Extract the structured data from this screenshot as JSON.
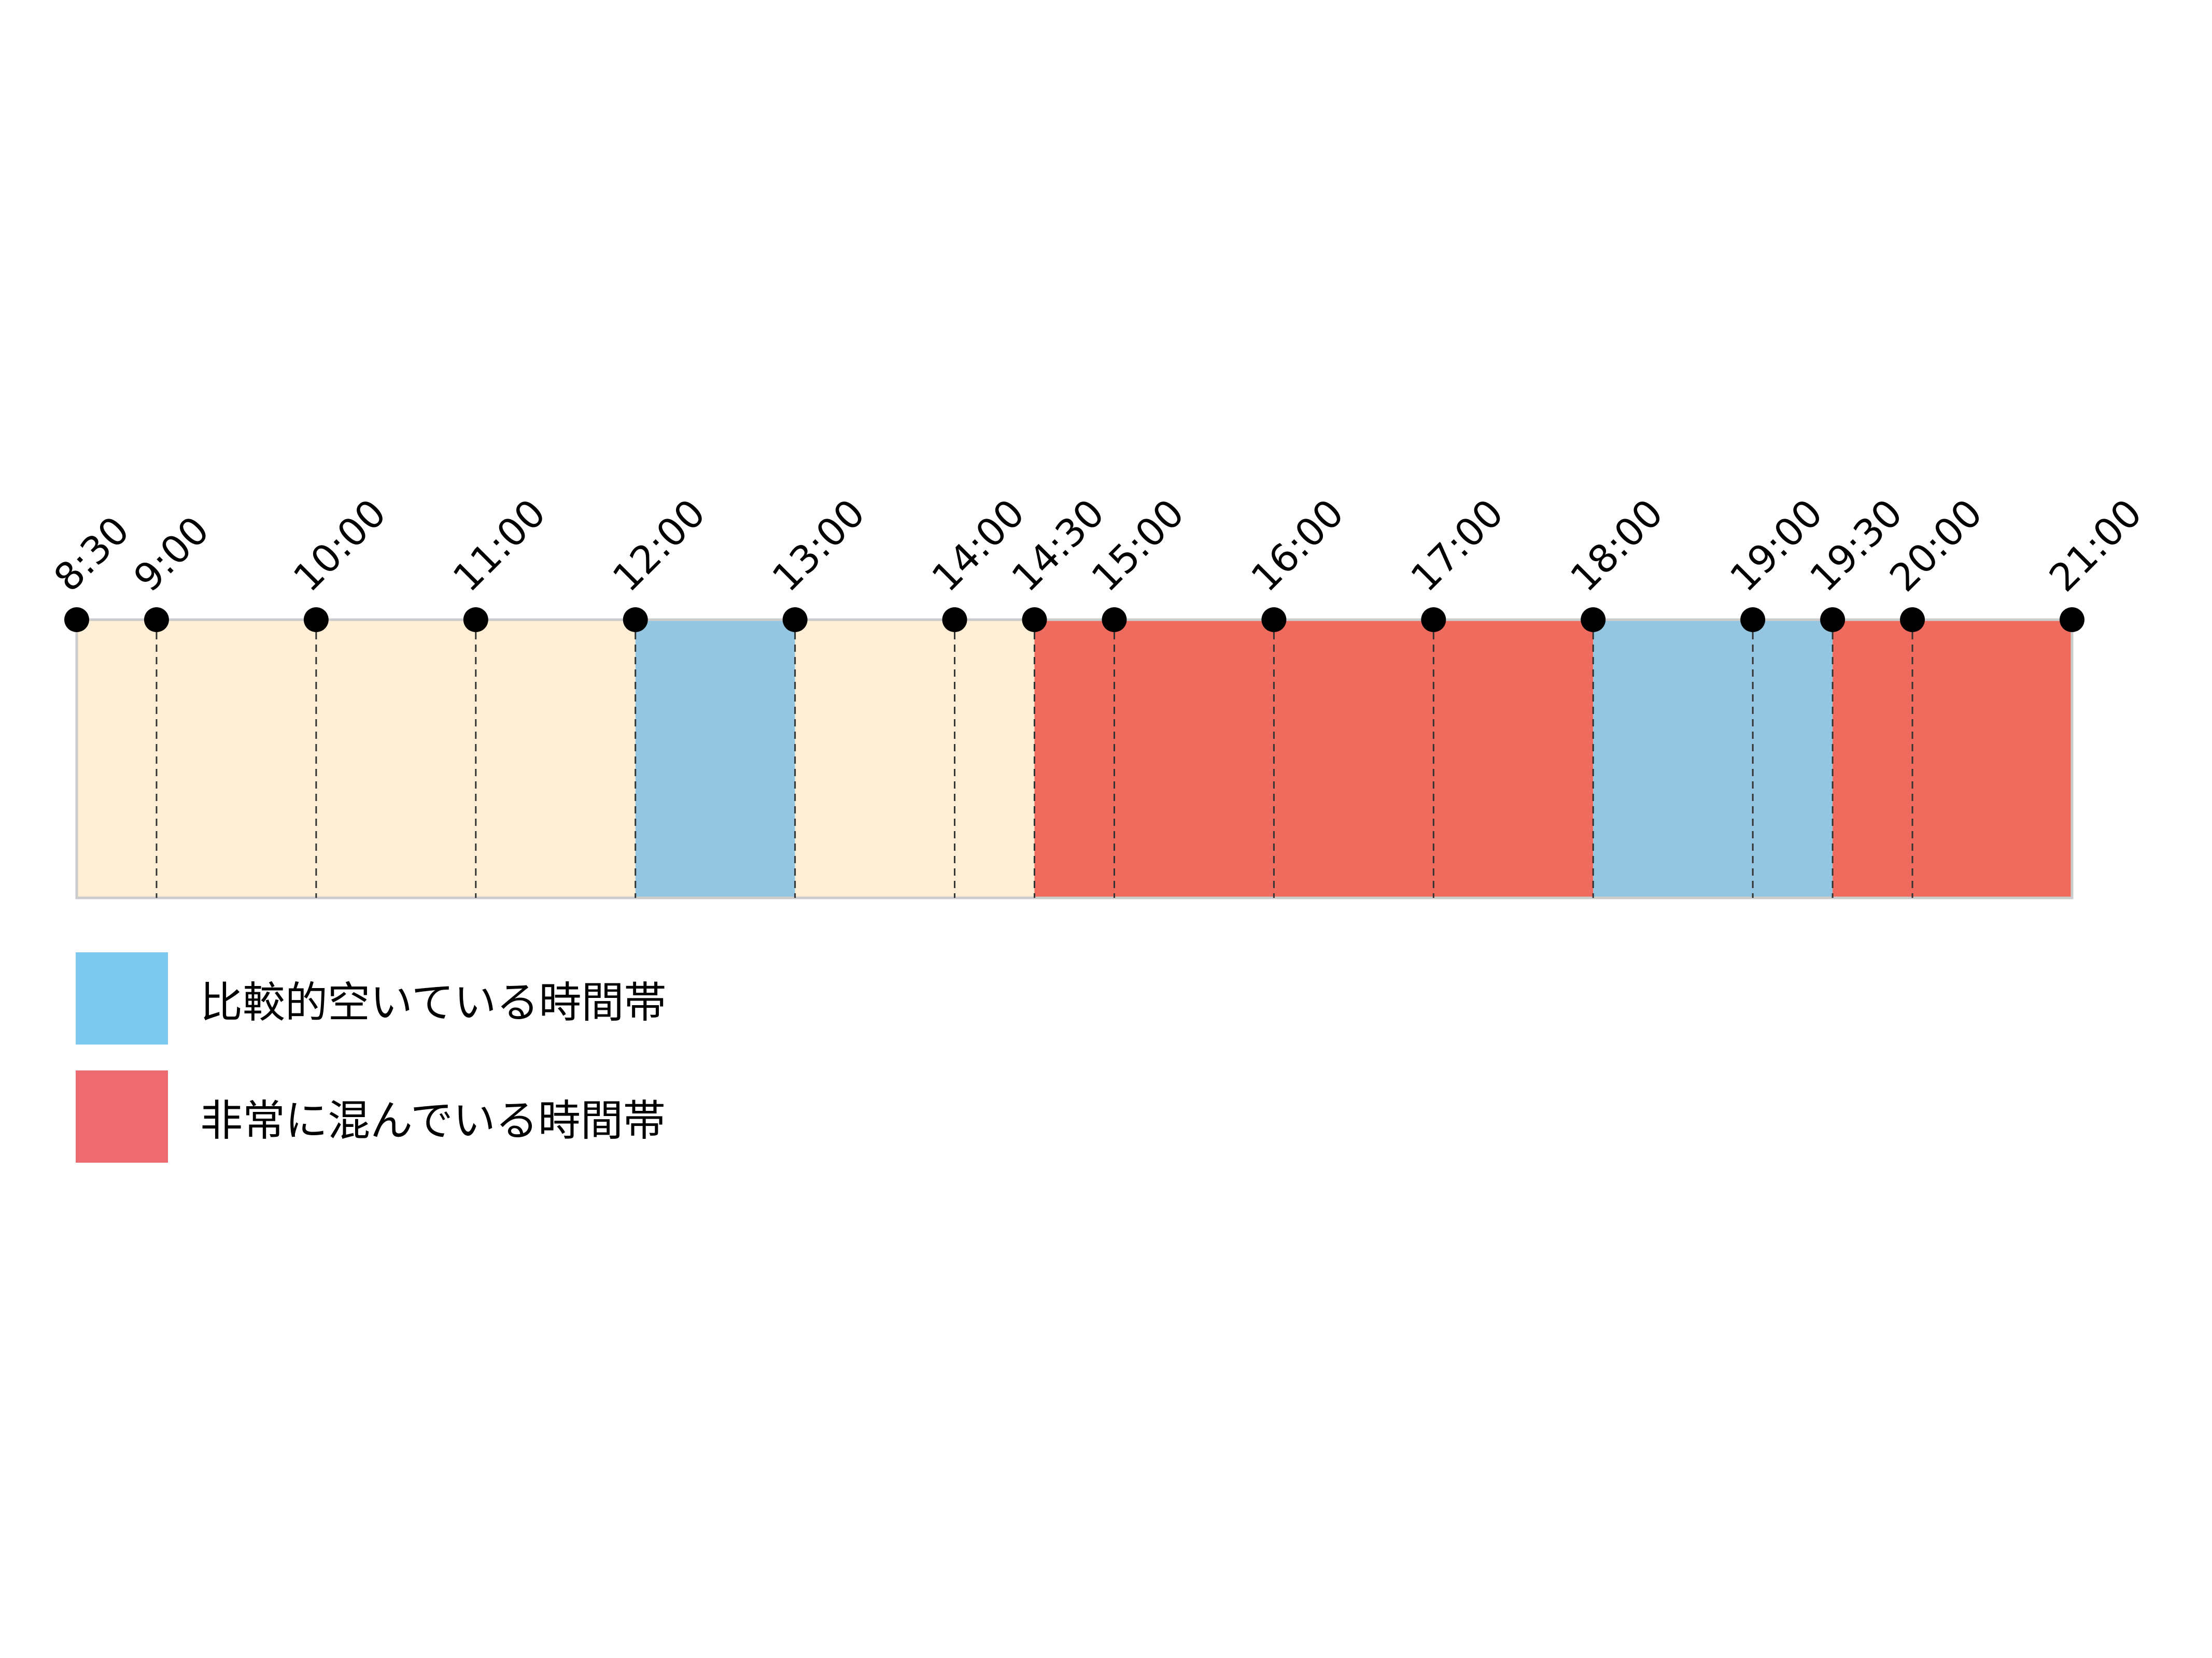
{
  "chart_data": {
    "type": "timeline",
    "x_start": "8:30",
    "x_end": "21:00",
    "ticks": [
      "8:30",
      "9:00",
      "10:00",
      "11:00",
      "12:00",
      "13:00",
      "14:00",
      "14:30",
      "15:00",
      "16:00",
      "17:00",
      "18:00",
      "19:00",
      "19:30",
      "20:00",
      "21:00"
    ],
    "segments": [
      {
        "start": "8:30",
        "end": "12:00",
        "level": "normal"
      },
      {
        "start": "12:00",
        "end": "13:00",
        "level": "quiet"
      },
      {
        "start": "13:00",
        "end": "14:30",
        "level": "normal"
      },
      {
        "start": "14:30",
        "end": "18:00",
        "level": "busy"
      },
      {
        "start": "18:00",
        "end": "19:30",
        "level": "quiet"
      },
      {
        "start": "19:30",
        "end": "21:00",
        "level": "busy"
      }
    ],
    "colors": {
      "normal": "#fdeed5",
      "quiet": "#94c6e1",
      "busy": "#ee6b5e",
      "legend_quiet": "#7dc9ed",
      "legend_busy": "#ee6a71"
    }
  },
  "legend": {
    "items": [
      {
        "label": "比較的空いている時間帯",
        "color": "#7dc9ed"
      },
      {
        "label": "非常に混んでいる時間帯",
        "color": "#ee6a71"
      }
    ]
  }
}
